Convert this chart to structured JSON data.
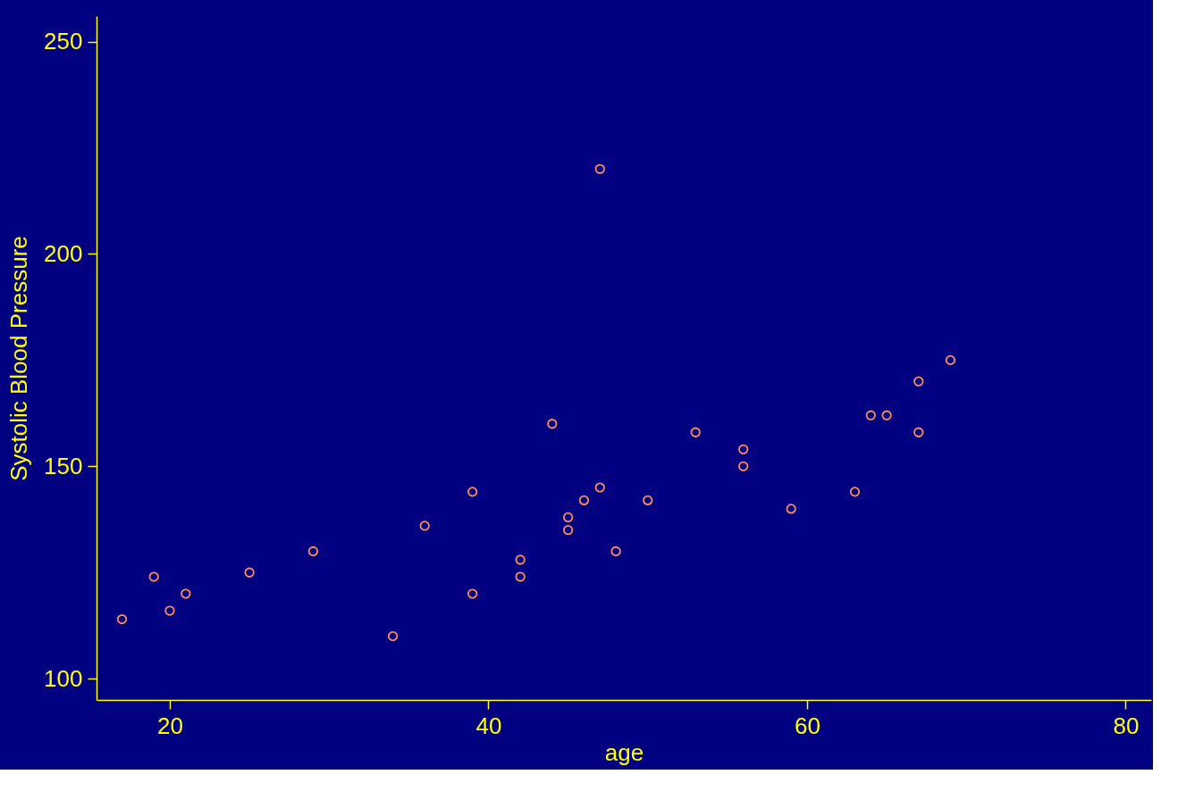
{
  "chart_data": {
    "type": "scatter",
    "xlabel": "age",
    "ylabel": "Systolic Blood Pressure",
    "x": [
      17,
      19,
      20,
      21,
      25,
      29,
      34,
      36,
      39,
      39,
      42,
      42,
      44,
      45,
      45,
      46,
      47,
      47,
      48,
      50,
      53,
      56,
      56,
      59,
      63,
      64,
      65,
      67,
      67,
      69
    ],
    "series": [
      {
        "color": "#ff8c5a",
        "values": [
          114,
          124,
          116,
          120,
          125,
          130,
          110,
          136,
          144,
          120,
          128,
          124,
          160,
          138,
          135,
          142,
          145,
          220,
          130,
          142,
          158,
          154,
          150,
          140,
          144,
          162,
          162,
          170,
          158,
          175
        ]
      }
    ],
    "xlim": [
      15.4,
      81.6
    ],
    "xticks": [
      20,
      40,
      60,
      80
    ],
    "ylim": [
      95,
      256
    ],
    "yticks": [
      100,
      150,
      200,
      250
    ],
    "marker": "circle",
    "grid": false
  }
}
